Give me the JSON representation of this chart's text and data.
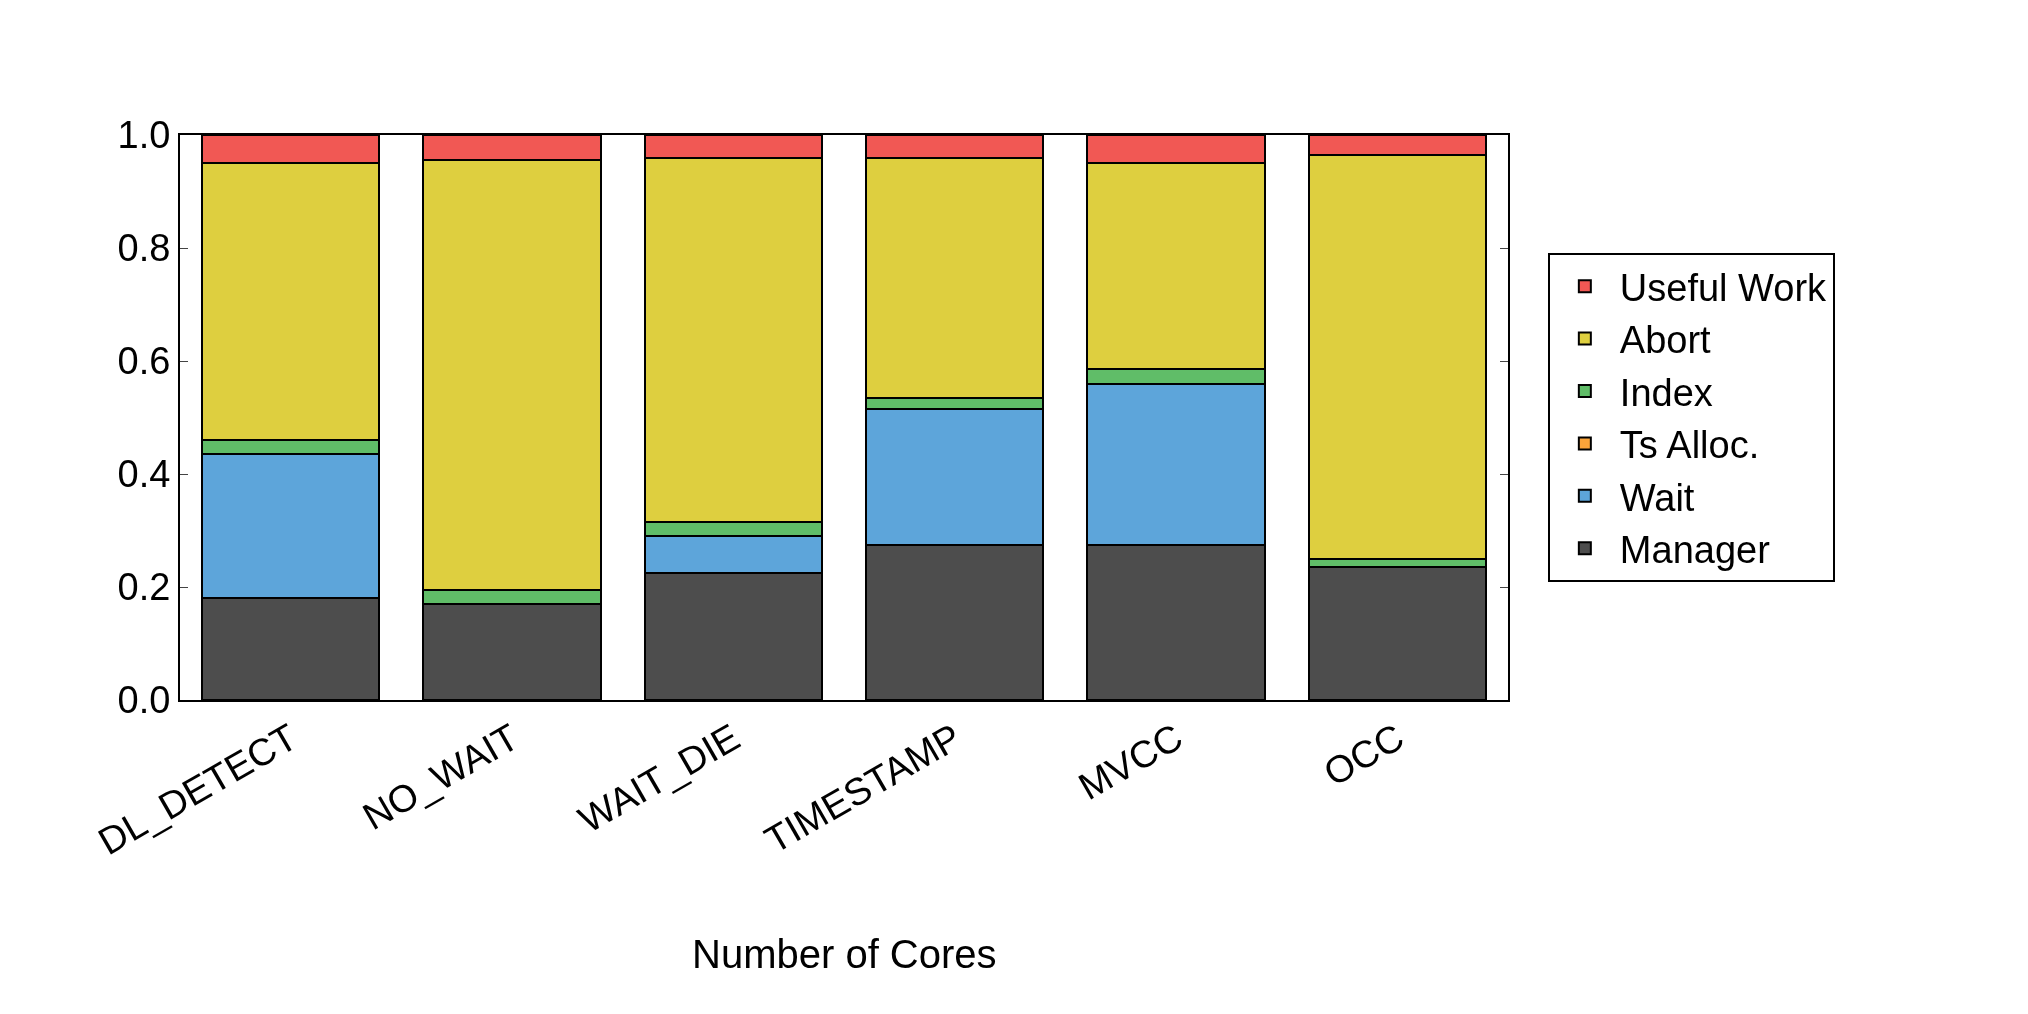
{
  "chart_data": {
    "type": "bar",
    "stacked": true,
    "categories": [
      "DL_DETECT",
      "NO_WAIT",
      "WAIT_DIE",
      "TIMESTAMP",
      "MVCC",
      "OCC"
    ],
    "series": [
      {
        "name": "Manager",
        "color": "#4d4d4d",
        "values": [
          0.18,
          0.17,
          0.225,
          0.275,
          0.275,
          0.235
        ]
      },
      {
        "name": "Wait",
        "color": "#5da5da",
        "values": [
          0.255,
          0.0,
          0.065,
          0.24,
          0.285,
          0.0
        ]
      },
      {
        "name": "Ts Alloc.",
        "color": "#faa43a",
        "values": [
          0,
          0,
          0,
          0,
          0,
          0
        ]
      },
      {
        "name": "Index",
        "color": "#60bd68",
        "values": [
          0.025,
          0.025,
          0.025,
          0.02,
          0.025,
          0.015
        ]
      },
      {
        "name": "Abort",
        "color": "#decf3f",
        "values": [
          0.49,
          0.76,
          0.645,
          0.425,
          0.365,
          0.715
        ]
      },
      {
        "name": "Useful Work",
        "color": "#f15854",
        "values": [
          0.05,
          0.045,
          0.04,
          0.04,
          0.05,
          0.035
        ]
      }
    ],
    "ylim": [
      0,
      1
    ],
    "yticks": [
      {
        "value": 0,
        "label": "0.0"
      },
      {
        "value": 0.2,
        "label": "0.2"
      },
      {
        "value": 0.4,
        "label": "0.4"
      },
      {
        "value": 0.6,
        "label": "0.6"
      },
      {
        "value": 0.8,
        "label": "0.8"
      },
      {
        "value": 1,
        "label": "1.0"
      }
    ],
    "grid": false,
    "legend": "right",
    "annotations": [
      "Number of Cores"
    ]
  }
}
